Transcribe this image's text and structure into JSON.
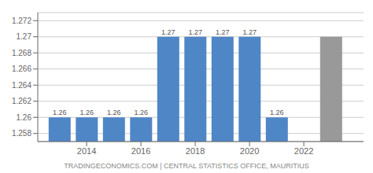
{
  "chart_data": {
    "type": "bar",
    "x": [
      2013,
      2014,
      2015,
      2016,
      2017,
      2018,
      2019,
      2020,
      2021,
      2023
    ],
    "values": [
      1.26,
      1.26,
      1.26,
      1.26,
      1.27,
      1.27,
      1.27,
      1.27,
      1.26,
      1.27
    ],
    "value_labels": [
      "1.26",
      "1.26",
      "1.26",
      "1.26",
      "1.27",
      "1.27",
      "1.27",
      "1.27",
      "1.26",
      null
    ],
    "data_labels": true,
    "colors": [
      "#4f86c6",
      "#4f86c6",
      "#4f86c6",
      "#4f86c6",
      "#4f86c6",
      "#4f86c6",
      "#4f86c6",
      "#4f86c6",
      "#4f86c6",
      "#999999"
    ],
    "xlim": [
      2012.2,
      2024.2
    ],
    "xticks": [
      2014,
      2016,
      2018,
      2020,
      2022
    ],
    "ylim": [
      1.257,
      1.273
    ],
    "yticks": [
      1.258,
      1.26,
      1.262,
      1.264,
      1.266,
      1.268,
      1.27,
      1.272
    ],
    "grid": true,
    "annotations": [
      "TRADINGECONOMICS.COM | CENTRAL STATISTICS OFFICE, MAURITIUS"
    ]
  }
}
